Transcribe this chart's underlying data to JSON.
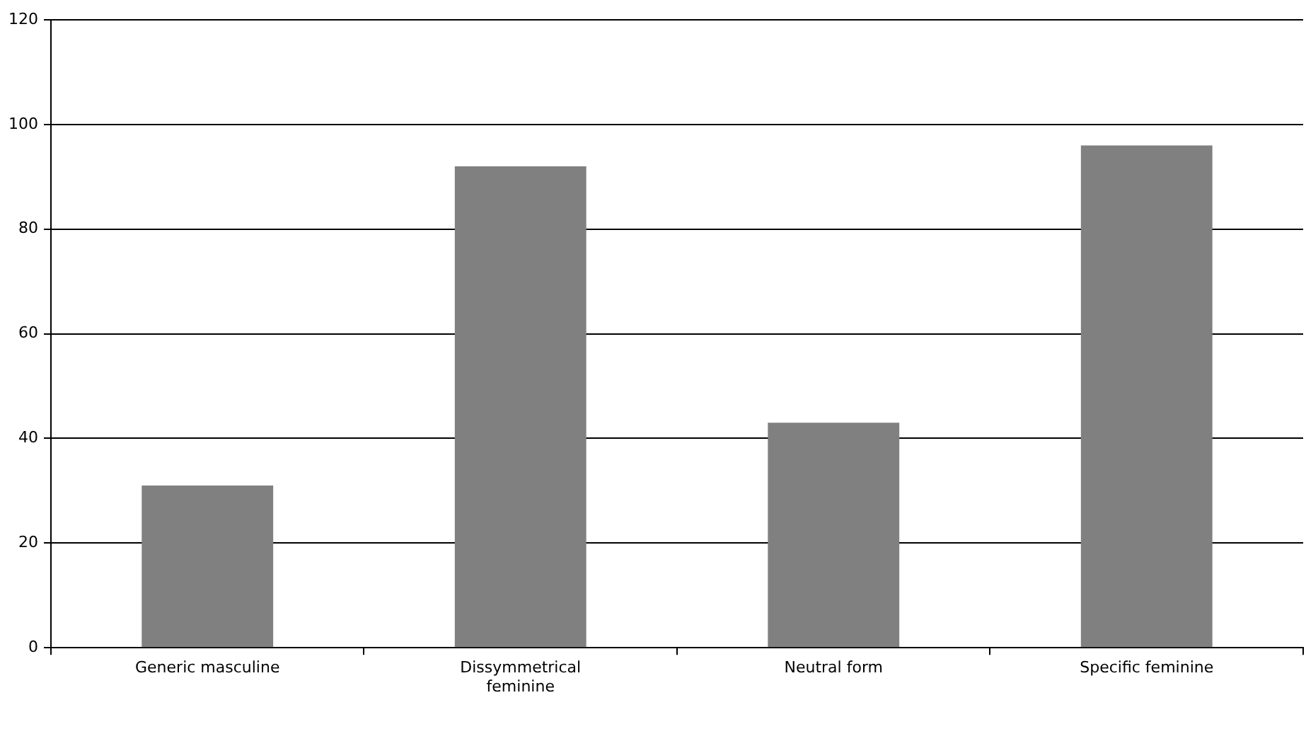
{
  "chart_data": {
    "type": "bar",
    "categories": [
      "Generic masculine",
      "Dissymmetrical feminine",
      "Neutral form",
      "Specific feminine"
    ],
    "values": [
      31,
      92,
      43,
      96
    ],
    "color": "#808080",
    "ylim": [
      0,
      120
    ],
    "yticks": [
      0,
      20,
      40,
      60,
      80,
      100,
      120
    ],
    "grid": "y",
    "legend": false
  }
}
